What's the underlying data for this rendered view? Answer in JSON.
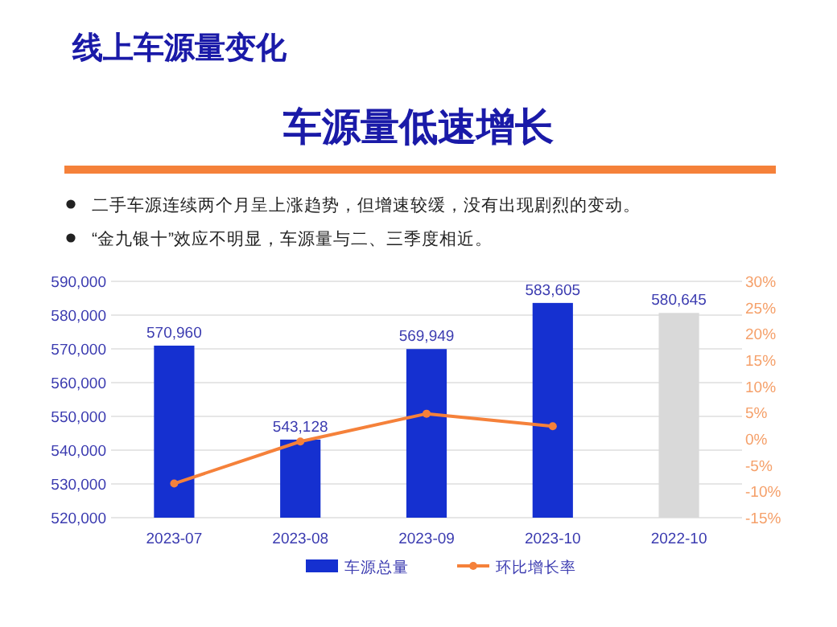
{
  "chart_data": {
    "type": "bar",
    "title": "线上车源量变化",
    "subtitle": "车源量低速增长",
    "annotations": [
      "二手车源连续两个月呈上涨趋势，但增速较缓，没有出现剧烈的变动。",
      "“金九银十”效应不明显，车源量与二、三季度相近。"
    ],
    "categories": [
      "2023-07",
      "2023-08",
      "2023-09",
      "2023-10",
      "2022-10"
    ],
    "series": [
      {
        "name": "车源总量",
        "type": "bar",
        "color": "#1530d0",
        "colors": [
          "#1530d0",
          "#1530d0",
          "#1530d0",
          "#1530d0",
          "#d9d9d9"
        ],
        "values": [
          570960,
          543128,
          569949,
          583605,
          580645
        ],
        "value_labels": [
          "570,960",
          "543,128",
          "569,949",
          "583,605",
          "580,645"
        ]
      },
      {
        "name": "环比增长率",
        "type": "line",
        "axis": "y2",
        "color": "#f5813a",
        "marker": "circle",
        "values": [
          -8.5,
          -0.5,
          4.8,
          2.4,
          null
        ]
      }
    ],
    "ylim": [
      520000,
      590000
    ],
    "yticks": [
      {
        "value": 520000,
        "label": "520,000"
      },
      {
        "value": 530000,
        "label": "530,000"
      },
      {
        "value": 540000,
        "label": "540,000"
      },
      {
        "value": 550000,
        "label": "550,000"
      },
      {
        "value": 560000,
        "label": "560,000"
      },
      {
        "value": 570000,
        "label": "570,000"
      },
      {
        "value": 580000,
        "label": "580,000"
      },
      {
        "value": 590000,
        "label": "590,000"
      }
    ],
    "y2lim": [
      -15,
      30
    ],
    "y2ticks": [
      {
        "value": -15,
        "label": "-15%"
      },
      {
        "value": -10,
        "label": "-10%"
      },
      {
        "value": -5,
        "label": "-5%"
      },
      {
        "value": 0,
        "label": "0%"
      },
      {
        "value": 5,
        "label": "5%"
      },
      {
        "value": 10,
        "label": "10%"
      },
      {
        "value": 15,
        "label": "15%"
      },
      {
        "value": 20,
        "label": "20%"
      },
      {
        "value": 25,
        "label": "25%"
      },
      {
        "value": 30,
        "label": "30%"
      }
    ],
    "grid": "y",
    "legend": "bottom"
  }
}
